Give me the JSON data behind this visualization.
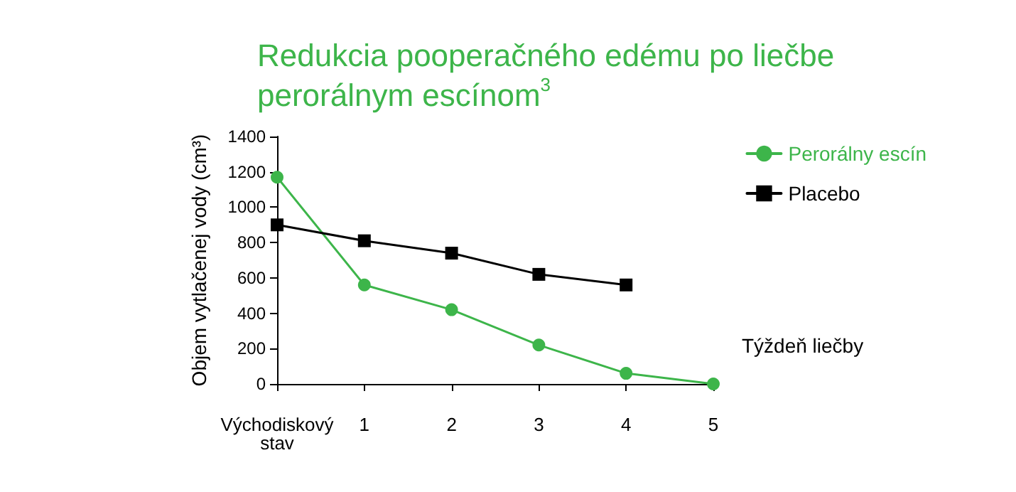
{
  "chart_data": {
    "type": "line",
    "title": "Redukcia pooperačného edému po liečbe perorálnym escínom$^{3}$",
    "xlabel": "Týždeň liečby",
    "ylabel": "Objem vytlačenej vody (cm³)",
    "categories": [
      "Východiskový stav",
      "1",
      "2",
      "3",
      "4",
      "5"
    ],
    "series": [
      {
        "name": "Perorálny escín",
        "color": "#3db54a",
        "marker": "circle",
        "values": [
          1170,
          560,
          420,
          220,
          60,
          0
        ]
      },
      {
        "name": "Placebo",
        "color": "#000000",
        "marker": "square",
        "values": [
          900,
          810,
          740,
          620,
          560,
          null
        ]
      }
    ],
    "ylim": [
      0,
      1400
    ],
    "yticks": [
      0,
      200,
      400,
      600,
      800,
      1000,
      1200,
      1400
    ],
    "grid": false,
    "legend": "top right"
  }
}
